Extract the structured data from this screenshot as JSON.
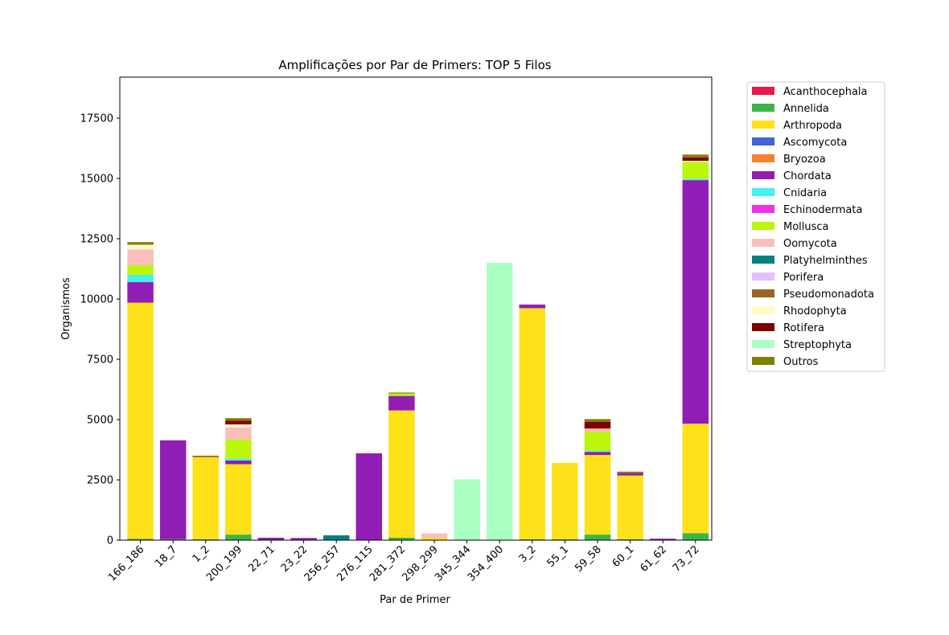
{
  "chart_data": {
    "type": "bar",
    "stacked": true,
    "title": "Amplificações por Par de Primers: TOP 5 Filos",
    "xlabel": "Par de Primer",
    "ylabel": "Organismos",
    "ylim": [
      0,
      19200
    ],
    "yticks": [
      0,
      2500,
      5000,
      7500,
      10000,
      12500,
      15000,
      17500
    ],
    "ytick_labels": [
      "0",
      "2500",
      "5000",
      "7500",
      "10000",
      "12500",
      "15000",
      "17500"
    ],
    "grid": false,
    "legend_position": "outside-top-right",
    "categories": [
      "166_186",
      "18_7",
      "1_2",
      "200_199",
      "22_71",
      "23_22",
      "256_257",
      "276_115",
      "281_372",
      "298_299",
      "345_344",
      "354_400",
      "3_2",
      "55_1",
      "59_58",
      "60_1",
      "61_62",
      "73_72"
    ],
    "series": [
      {
        "name": "Acanthocephala",
        "color": "#e6194b",
        "values": [
          0,
          0,
          0,
          0,
          0,
          0,
          0,
          0,
          0,
          0,
          0,
          0,
          0,
          0,
          0,
          0,
          0,
          0
        ]
      },
      {
        "name": "Annelida",
        "color": "#3cb44b",
        "values": [
          50,
          40,
          40,
          230,
          0,
          0,
          0,
          0,
          100,
          0,
          0,
          0,
          40,
          40,
          230,
          40,
          0,
          290
        ]
      },
      {
        "name": "Arthropoda",
        "color": "#ffe119",
        "values": [
          9800,
          0,
          3400,
          2920,
          0,
          0,
          0,
          0,
          5280,
          100,
          0,
          0,
          9580,
          3160,
          3300,
          2640,
          0,
          4540
        ]
      },
      {
        "name": "Ascomycota",
        "color": "#4363d8",
        "values": [
          0,
          0,
          0,
          0,
          0,
          0,
          0,
          0,
          0,
          0,
          0,
          0,
          0,
          0,
          0,
          0,
          0,
          0
        ]
      },
      {
        "name": "Bryozoa",
        "color": "#f58231",
        "values": [
          0,
          0,
          0,
          0,
          0,
          0,
          0,
          0,
          0,
          0,
          0,
          20,
          0,
          0,
          0,
          0,
          0,
          0
        ]
      },
      {
        "name": "Chordata",
        "color": "#911eb4",
        "values": [
          850,
          4100,
          0,
          150,
          100,
          90,
          0,
          3600,
          600,
          0,
          0,
          0,
          150,
          0,
          130,
          100,
          60,
          10100
        ]
      },
      {
        "name": "Cnidaria",
        "color": "#46f0f0",
        "values": [
          300,
          0,
          0,
          80,
          0,
          0,
          0,
          0,
          0,
          0,
          0,
          0,
          0,
          0,
          40,
          0,
          0,
          60
        ]
      },
      {
        "name": "Echinodermata",
        "color": "#f032e6",
        "values": [
          0,
          0,
          0,
          0,
          0,
          0,
          0,
          0,
          0,
          0,
          0,
          0,
          0,
          0,
          0,
          0,
          0,
          0
        ]
      },
      {
        "name": "Mollusca",
        "color": "#bcf60c",
        "values": [
          400,
          0,
          0,
          800,
          0,
          0,
          0,
          0,
          100,
          0,
          0,
          0,
          0,
          0,
          800,
          0,
          0,
          700
        ]
      },
      {
        "name": "Oomycota",
        "color": "#fabebe",
        "values": [
          650,
          0,
          0,
          500,
          0,
          0,
          0,
          0,
          0,
          180,
          0,
          0,
          0,
          0,
          130,
          0,
          0,
          0
        ]
      },
      {
        "name": "Platyhelminthes",
        "color": "#008080",
        "values": [
          0,
          0,
          0,
          0,
          0,
          0,
          200,
          0,
          0,
          0,
          0,
          0,
          0,
          0,
          0,
          0,
          0,
          0
        ]
      },
      {
        "name": "Porifera",
        "color": "#e6beff",
        "values": [
          0,
          0,
          0,
          0,
          0,
          0,
          0,
          0,
          0,
          0,
          0,
          0,
          0,
          0,
          0,
          0,
          0,
          0
        ]
      },
      {
        "name": "Pseudomonadota",
        "color": "#9a6324",
        "values": [
          0,
          0,
          60,
          0,
          0,
          0,
          0,
          0,
          0,
          0,
          0,
          0,
          0,
          0,
          0,
          0,
          0,
          0
        ]
      },
      {
        "name": "Rhodophyta",
        "color": "#fffac8",
        "values": [
          200,
          0,
          60,
          120,
          0,
          0,
          0,
          0,
          0,
          0,
          0,
          0,
          0,
          0,
          0,
          0,
          0,
          40
        ]
      },
      {
        "name": "Rotifera",
        "color": "#800000",
        "values": [
          0,
          0,
          0,
          150,
          0,
          0,
          0,
          0,
          0,
          0,
          0,
          0,
          0,
          0,
          270,
          0,
          0,
          140
        ]
      },
      {
        "name": "Streptophyta",
        "color": "#aaffc3",
        "values": [
          0,
          0,
          0,
          0,
          0,
          0,
          0,
          0,
          0,
          0,
          2520,
          11480,
          0,
          0,
          0,
          0,
          0,
          0
        ]
      },
      {
        "name": "Outros",
        "color": "#808000",
        "values": [
          110,
          0,
          0,
          110,
          0,
          0,
          0,
          0,
          40,
          0,
          0,
          0,
          0,
          0,
          120,
          60,
          0,
          120
        ]
      }
    ]
  }
}
